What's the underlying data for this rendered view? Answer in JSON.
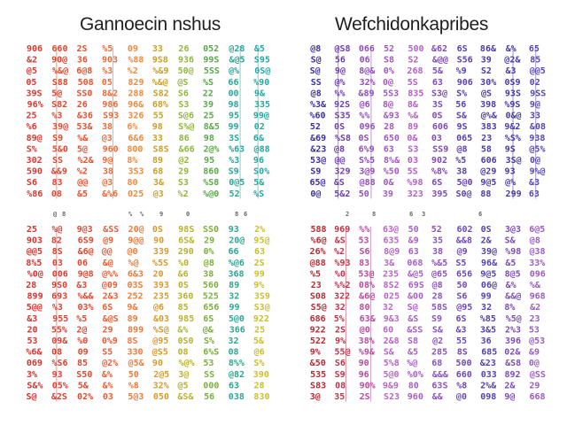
{
  "panels": [
    {
      "title": "Gannoecin nshus",
      "palette": [
        "#d9362e",
        "#e2452c",
        "#e8502f",
        "#ea6a38",
        "#ee8a3e",
        "#c8a028",
        "#8fb83a",
        "#5aa84a",
        "#2aa59a",
        "#22a8a2"
      ],
      "lower_palette": [
        "#d4332c",
        "#de3d2e",
        "#e2472f",
        "#e85d34",
        "#ec7a3a",
        "#d59a2a",
        "#b8b22c",
        "#7cae3c",
        "#2ea594",
        "#c9c02a"
      ]
    },
    {
      "title": "Wefchidonkapribes",
      "palette": [
        "#3b2f9e",
        "#6a3fae",
        "#8e4db8",
        "#a457c0",
        "#b35fc6",
        "#7e49b8",
        "#5a40ac",
        "#4a3aa6",
        "#463aa8",
        "#5a45b0"
      ],
      "lower_palette": [
        "#b52a34",
        "#c0334a",
        "#b84b9c",
        "#b865c4",
        "#a85ec6",
        "#8a52c0",
        "#6c48b6",
        "#5440ae",
        "#7b4db8",
        "#9b5cc2"
      ]
    }
  ],
  "glyphs": [
    "S",
    "9",
    "0",
    "8",
    "6",
    "3",
    "2",
    "5",
    "@",
    "&",
    "%"
  ],
  "colors": {
    "background": "#ffffff",
    "title": "#1f1f1f"
  }
}
